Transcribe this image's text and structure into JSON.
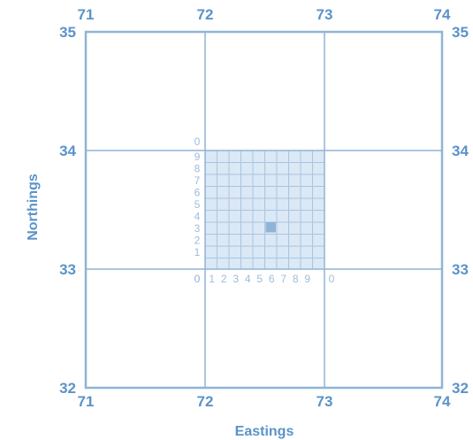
{
  "colors": {
    "line": "#8fb4d6",
    "label": "#5b93c8",
    "minor_label": "#9dbcd9",
    "square_fill": "#dbe8f5",
    "subgrid_line": "#a9c5e0",
    "highlight": "#8fb4d6"
  },
  "axes": {
    "x_title": "Eastings",
    "y_title": "Northings"
  },
  "eastings": [
    "71",
    "72",
    "73",
    "74"
  ],
  "northings": [
    "35",
    "34",
    "33",
    "32"
  ],
  "sub_east_labels": [
    "0",
    "1",
    "2",
    "3",
    "4",
    "5",
    "6",
    "7",
    "8",
    "9",
    "0"
  ],
  "sub_north_labels": [
    "0",
    "9",
    "8",
    "7",
    "6",
    "5",
    "4",
    "3",
    "2",
    "1",
    "0"
  ],
  "highlight_cell": {
    "east": 5,
    "north": 3
  }
}
